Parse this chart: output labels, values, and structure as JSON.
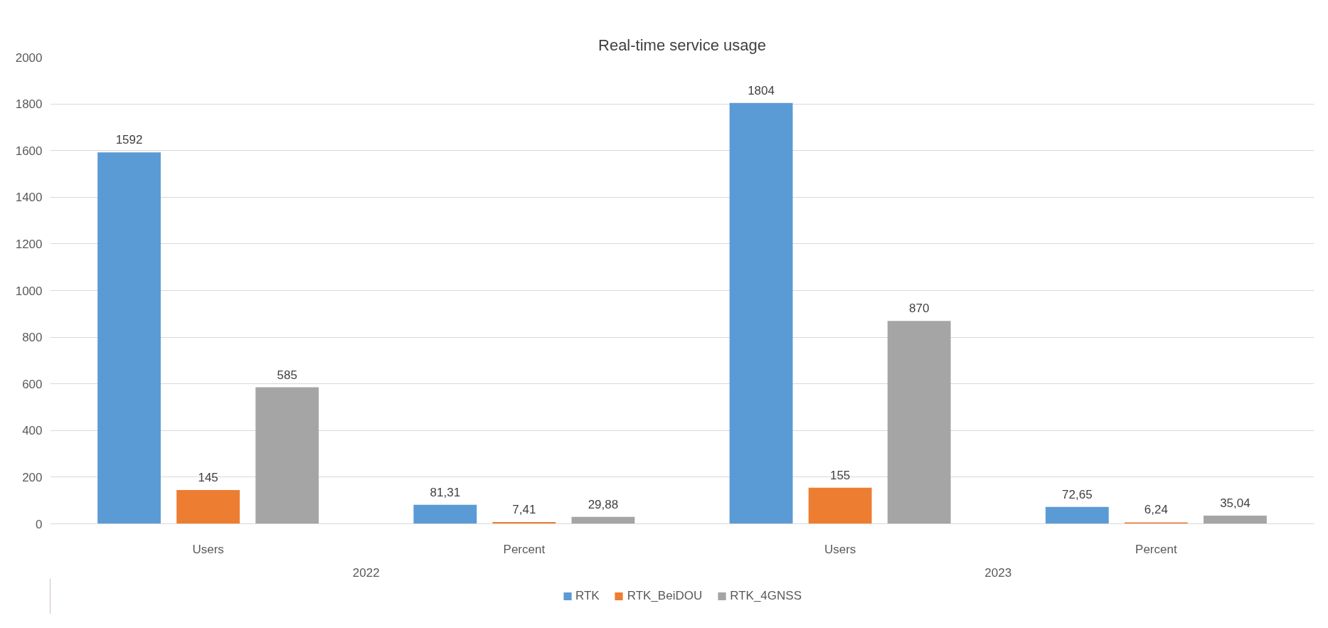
{
  "chart_data": {
    "type": "bar",
    "title": "Real-time service usage",
    "categories": [
      "Users",
      "Percent",
      "Users",
      "Percent"
    ],
    "annotations": [
      "2022",
      "2023"
    ],
    "series": [
      {
        "name": "RTK",
        "color": "#5b9bd5",
        "values": [
          1592,
          81.31,
          1804,
          72.65
        ],
        "value_labels": [
          "1592",
          "81,31",
          "1804",
          "72,65"
        ]
      },
      {
        "name": "RTK_BeiDOU",
        "color": "#ed7d31",
        "values": [
          145,
          7.41,
          155,
          6.24
        ],
        "value_labels": [
          "145",
          "7,41",
          "155",
          "6,24"
        ]
      },
      {
        "name": "RTK_4GNSS",
        "color": "#a5a5a5",
        "values": [
          585,
          29.88,
          870,
          35.04
        ],
        "value_labels": [
          "585",
          "29,88",
          "870",
          "35,04"
        ]
      }
    ],
    "ylim": [
      0,
      2000
    ],
    "yticks": [
      0,
      200,
      400,
      600,
      800,
      1000,
      1200,
      1400,
      1600,
      1800,
      2000
    ],
    "grid": "y",
    "legend": "bottom"
  }
}
